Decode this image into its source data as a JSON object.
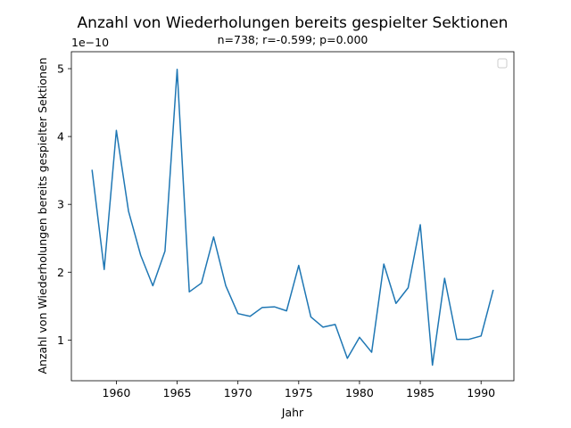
{
  "chart_data": {
    "type": "line",
    "title": "Anzahl von Wiederholungen bereits gespielter Sektionen",
    "subtitle": "n=738; r=-0.599; p=0.000",
    "xlabel": "Jahr",
    "ylabel": "Anzahl von Wiederholungen bereits gespielter Sektionen",
    "y_offset_label": "1e−10",
    "xlim": [
      1956.3,
      1992.7
    ],
    "ylim": [
      0.4,
      5.25
    ],
    "x_ticks": [
      1960,
      1965,
      1970,
      1975,
      1980,
      1985,
      1990
    ],
    "x_tick_labels": [
      "1960",
      "1965",
      "1970",
      "1975",
      "1980",
      "1985",
      "1990"
    ],
    "y_ticks": [
      1,
      2,
      3,
      4,
      5
    ],
    "y_tick_labels": [
      "1",
      "2",
      "3",
      "4",
      "5"
    ],
    "grid": false,
    "legend": "top-right (empty)",
    "colors": {
      "line": "#1f77b4"
    },
    "series": [
      {
        "x": [
          1958,
          1959,
          1960,
          1961,
          1962,
          1963,
          1964,
          1965,
          1966,
          1967,
          1968,
          1969,
          1970,
          1971,
          1972,
          1973,
          1974,
          1975,
          1976,
          1977,
          1978,
          1979,
          1980,
          1981,
          1982,
          1983,
          1984,
          1985,
          1986,
          1987,
          1988,
          1989,
          1990,
          1991
        ],
        "values": [
          3.51,
          2.04,
          4.09,
          2.9,
          2.25,
          1.8,
          2.31,
          4.99,
          1.71,
          1.84,
          2.52,
          1.8,
          1.39,
          1.35,
          1.48,
          1.49,
          1.43,
          2.1,
          1.34,
          1.19,
          1.23,
          0.73,
          1.04,
          0.82,
          2.12,
          1.54,
          1.77,
          2.7,
          0.63,
          1.91,
          1.01,
          1.01,
          1.06,
          1.74
        ]
      }
    ]
  }
}
